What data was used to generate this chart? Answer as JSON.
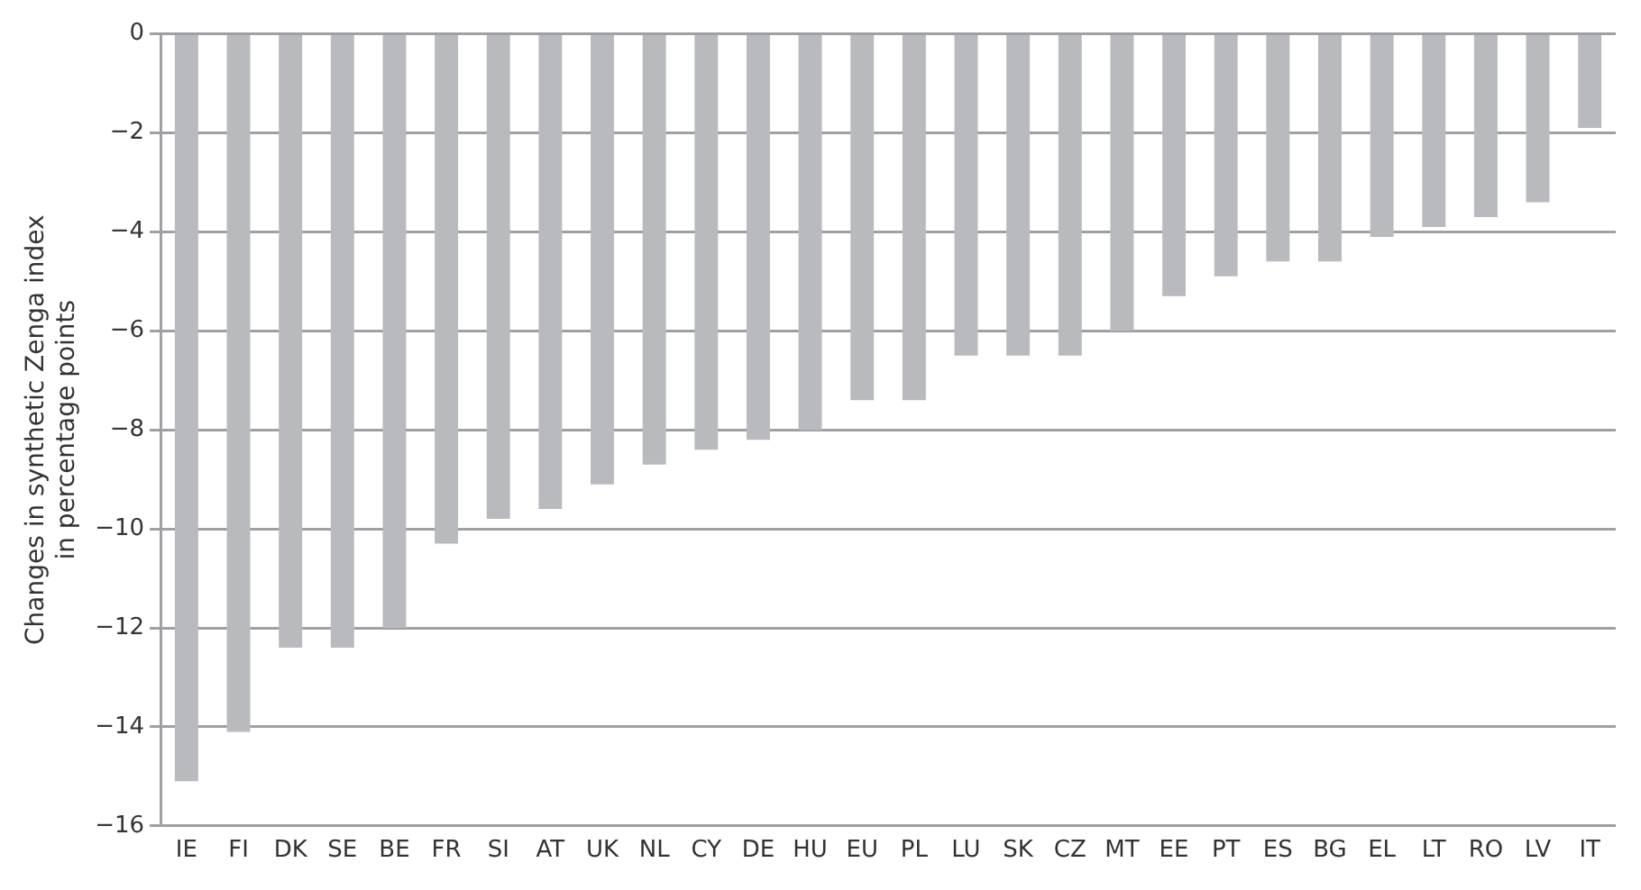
{
  "chart_data": {
    "type": "bar",
    "ylabel": "Changes in synthetic Zenga index\nin percentage points",
    "categories": [
      "IE",
      "FI",
      "DK",
      "SE",
      "BE",
      "FR",
      "SI",
      "AT",
      "UK",
      "NL",
      "CY",
      "DE",
      "HU",
      "EU",
      "PL",
      "LU",
      "SK",
      "CZ",
      "MT",
      "EE",
      "PT",
      "ES",
      "BG",
      "EL",
      "LT",
      "RO",
      "LV",
      "IT"
    ],
    "values": [
      -15.1,
      -14.1,
      -12.4,
      -12.4,
      -12.0,
      -10.3,
      -9.8,
      -9.6,
      -9.1,
      -8.7,
      -8.4,
      -8.2,
      -8.0,
      -7.4,
      -7.4,
      -6.5,
      -6.5,
      -6.5,
      -6.0,
      -5.3,
      -4.9,
      -4.6,
      -4.6,
      -4.1,
      -3.9,
      -3.7,
      -3.4,
      -1.9
    ],
    "color": "#b9babe",
    "ylim": [
      -16,
      0
    ],
    "yticks": [
      {
        "value": -16,
        "label": "−16"
      },
      {
        "value": -14,
        "label": "−14"
      },
      {
        "value": -12,
        "label": "−12"
      },
      {
        "value": -10,
        "label": "−10"
      },
      {
        "value": -8,
        "label": "−8"
      },
      {
        "value": -6,
        "label": "−6"
      },
      {
        "value": -4,
        "label": "−4"
      },
      {
        "value": -2,
        "label": "−2"
      },
      0
    ],
    "grid": "y",
    "legend": false
  }
}
